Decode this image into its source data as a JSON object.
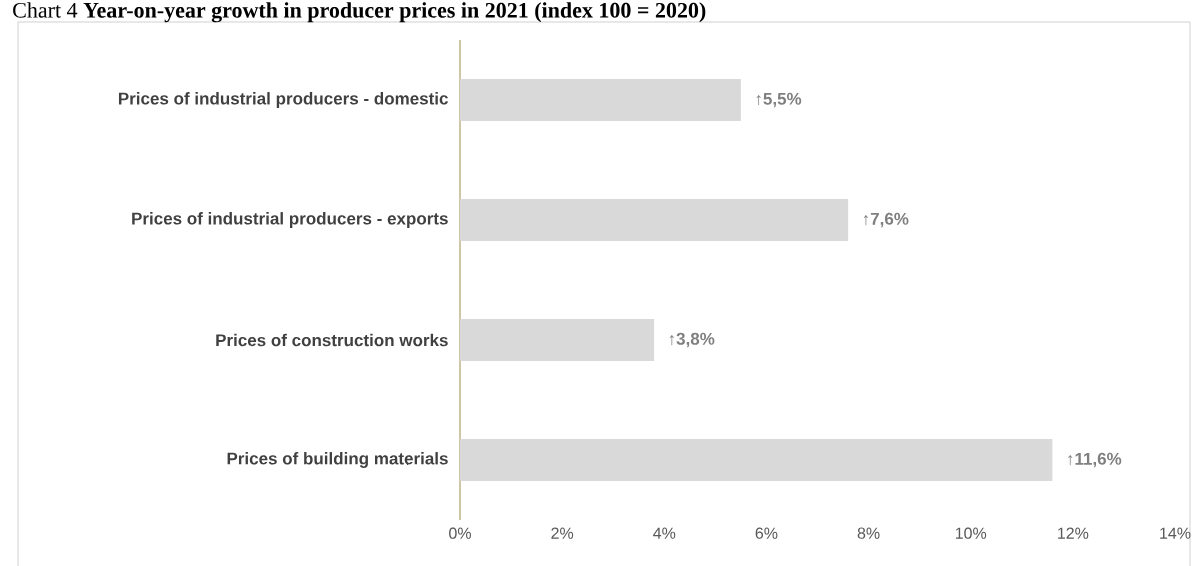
{
  "chart_data": {
    "type": "bar",
    "orientation": "horizontal",
    "title": "Chart 4 **Year-on-year growth in producer prices in 2021 (index 100 = 2020)**",
    "categories": [
      "Prices of industrial producers - domestic",
      "Prices of industrial producers - exports",
      "Prices of construction works",
      "Prices of building materials"
    ],
    "values": [
      5.5,
      7.6,
      3.8,
      11.6
    ],
    "color": "#d9d9d9",
    "value_labels": [
      "↑5,5%",
      "↑7,6%",
      "↑3,8%",
      "↑11,6%"
    ],
    "xlim": [
      0,
      14
    ],
    "xticks": [
      {
        "value": 0,
        "label": "0%"
      },
      {
        "value": 2,
        "label": "2%"
      },
      {
        "value": 4,
        "label": "4%"
      },
      {
        "value": 6,
        "label": "6%"
      },
      {
        "value": 8,
        "label": "8%"
      },
      {
        "value": 10,
        "label": "10%"
      },
      {
        "value": 12,
        "label": "12%"
      },
      {
        "value": 14,
        "label": "14%"
      }
    ],
    "grid": false
  }
}
